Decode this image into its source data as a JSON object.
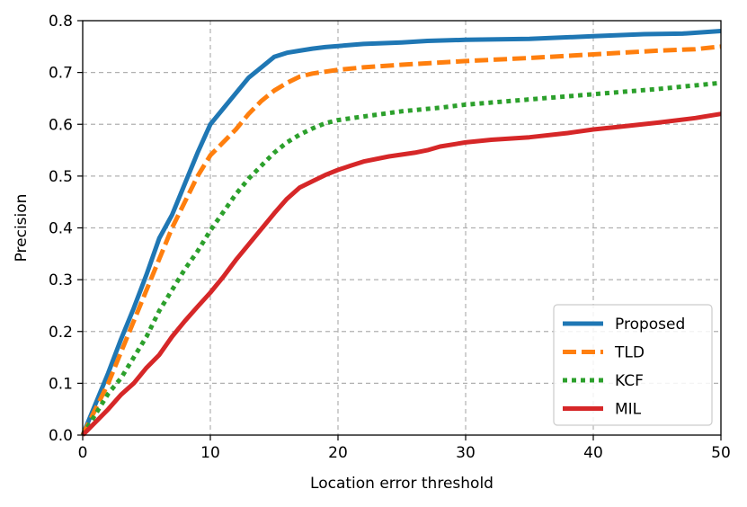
{
  "chart_data": {
    "type": "line",
    "title": "",
    "xlabel": "Location error threshold",
    "ylabel": "Precision",
    "xlim": [
      0,
      50
    ],
    "ylim": [
      0,
      0.8
    ],
    "xticks": [
      0,
      10,
      20,
      30,
      40,
      50
    ],
    "yticks": [
      0.0,
      0.1,
      0.2,
      0.3,
      0.4,
      0.5,
      0.6,
      0.7,
      0.8
    ],
    "xtick_labels": [
      "0",
      "10",
      "20",
      "30",
      "40",
      "50"
    ],
    "ytick_labels": [
      "0.0",
      "0.1",
      "0.2",
      "0.3",
      "0.4",
      "0.5",
      "0.6",
      "0.7",
      "0.8"
    ],
    "grid": true,
    "legend_position": "lower-right",
    "series": [
      {
        "name": "Proposed",
        "color": "#1f77b4",
        "style": "solid",
        "x": [
          0,
          1,
          2,
          3,
          4,
          5,
          6,
          7,
          8,
          9,
          10,
          11,
          12,
          13,
          14,
          15,
          16,
          17,
          18,
          19,
          20,
          22,
          25,
          27,
          30,
          35,
          40,
          44,
          47,
          50
        ],
        "y": [
          0.0,
          0.06,
          0.12,
          0.185,
          0.245,
          0.31,
          0.38,
          0.425,
          0.485,
          0.545,
          0.6,
          0.63,
          0.66,
          0.69,
          0.71,
          0.73,
          0.738,
          0.742,
          0.746,
          0.749,
          0.751,
          0.755,
          0.758,
          0.761,
          0.763,
          0.765,
          0.77,
          0.774,
          0.775,
          0.78
        ]
      },
      {
        "name": "TLD",
        "color": "#ff7f0e",
        "style": "dashed",
        "x": [
          0,
          1,
          2,
          3,
          4,
          5,
          6,
          7,
          8,
          9,
          10,
          11,
          12,
          13,
          14,
          15,
          16,
          17,
          18,
          20,
          22,
          25,
          30,
          35,
          40,
          45,
          48,
          50
        ],
        "y": [
          0.0,
          0.05,
          0.1,
          0.16,
          0.22,
          0.28,
          0.34,
          0.4,
          0.45,
          0.5,
          0.54,
          0.565,
          0.59,
          0.62,
          0.645,
          0.665,
          0.68,
          0.692,
          0.698,
          0.705,
          0.71,
          0.715,
          0.722,
          0.728,
          0.735,
          0.742,
          0.745,
          0.75
        ]
      },
      {
        "name": "KCF",
        "color": "#2ca02c",
        "style": "dotted",
        "x": [
          0,
          1,
          2,
          3,
          4,
          5,
          6,
          7,
          8,
          9,
          10,
          11,
          12,
          13,
          14,
          15,
          16,
          17,
          18,
          19,
          20,
          22,
          25,
          28,
          30,
          35,
          40,
          45,
          50
        ],
        "y": [
          0.0,
          0.04,
          0.08,
          0.11,
          0.15,
          0.19,
          0.24,
          0.28,
          0.32,
          0.355,
          0.395,
          0.43,
          0.465,
          0.495,
          0.52,
          0.545,
          0.565,
          0.58,
          0.592,
          0.602,
          0.608,
          0.615,
          0.625,
          0.632,
          0.638,
          0.648,
          0.658,
          0.668,
          0.68
        ]
      },
      {
        "name": "MIL",
        "color": "#d62728",
        "style": "solid",
        "x": [
          0,
          1,
          2,
          3,
          4,
          5,
          6,
          7,
          8,
          9,
          10,
          11,
          12,
          13,
          14,
          15,
          16,
          17,
          18,
          19,
          20,
          21,
          22,
          24,
          26,
          27,
          28,
          30,
          32,
          35,
          38,
          40,
          42,
          45,
          48,
          50
        ],
        "y": [
          0.0,
          0.025,
          0.05,
          0.078,
          0.1,
          0.13,
          0.155,
          0.19,
          0.22,
          0.248,
          0.275,
          0.305,
          0.338,
          0.368,
          0.398,
          0.428,
          0.456,
          0.478,
          0.49,
          0.502,
          0.512,
          0.52,
          0.528,
          0.538,
          0.545,
          0.55,
          0.557,
          0.565,
          0.57,
          0.575,
          0.583,
          0.59,
          0.595,
          0.603,
          0.612,
          0.62
        ]
      }
    ]
  }
}
